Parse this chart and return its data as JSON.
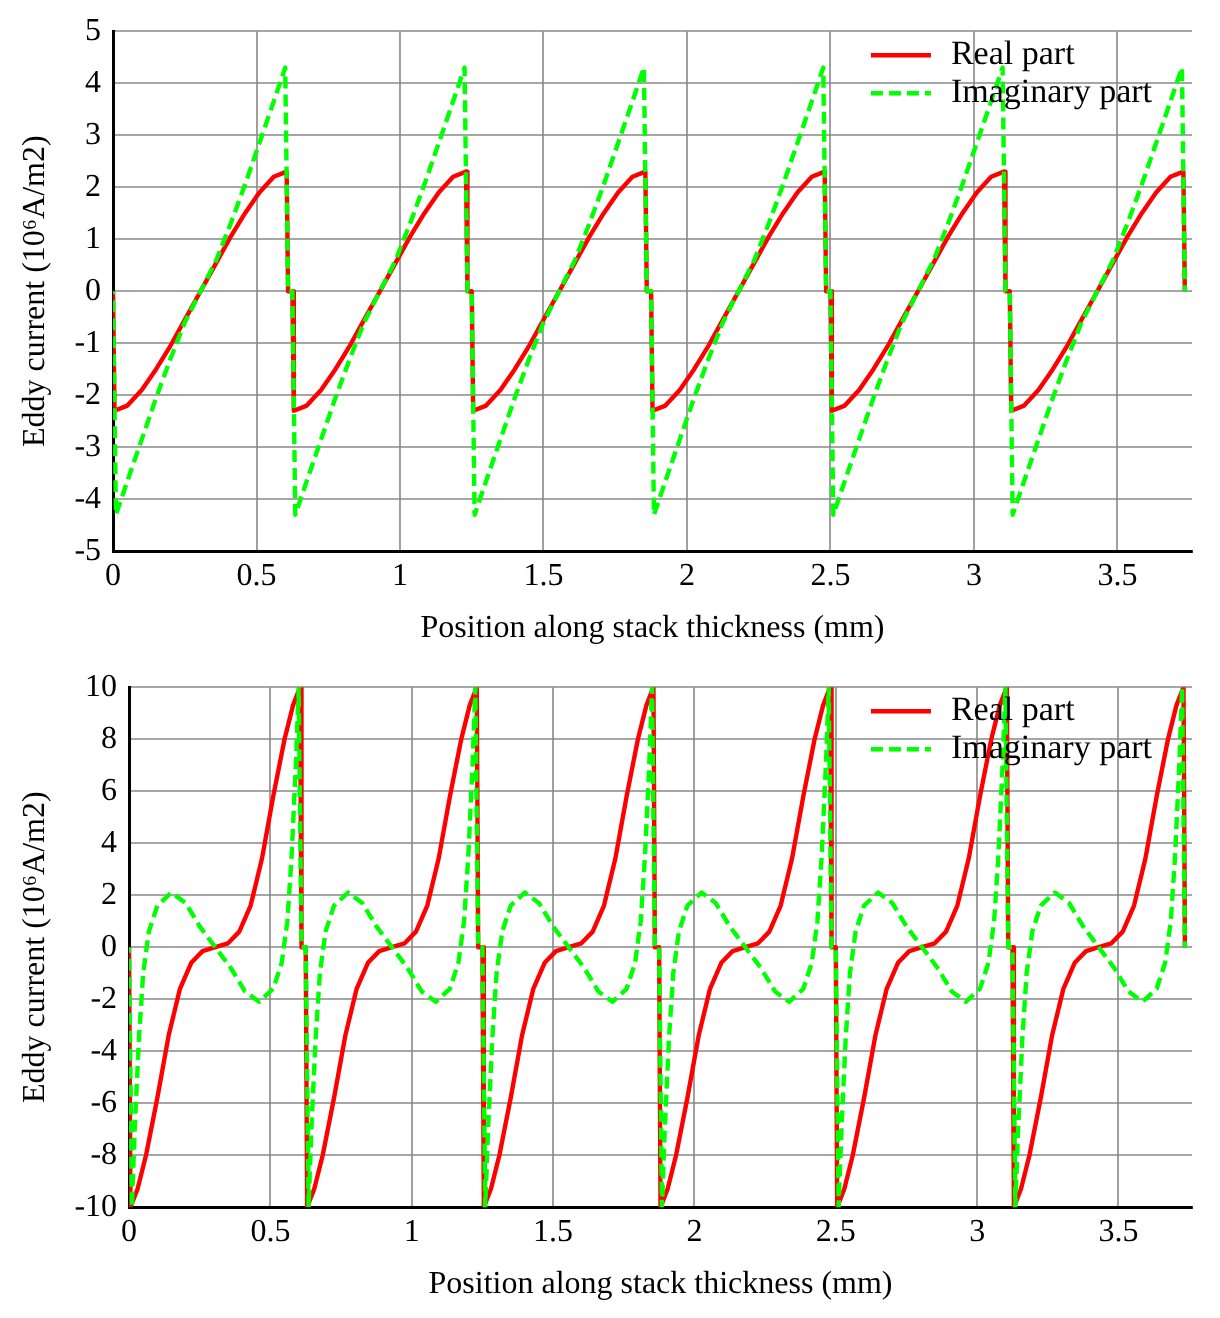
{
  "chart_data": [
    {
      "type": "line",
      "xlabel": "Position along stack thickness (mm)",
      "ylabel": "Eddy current (10⁶A/m2)",
      "xlim": [
        0,
        3.76
      ],
      "xticks": [
        0,
        0.5,
        1,
        1.5,
        2,
        2.5,
        3,
        3.5
      ],
      "ylim": [
        -5,
        5
      ],
      "yticks": [
        -5,
        -4,
        -3,
        -2,
        -1,
        0,
        1,
        2,
        3,
        4,
        5
      ],
      "grid": true,
      "legend": "top right",
      "marker": "none",
      "series": [
        {
          "name": "Real part",
          "color": "#ff0000",
          "line_style": "solid",
          "x": [
            0,
            0.005,
            0.05,
            0.1,
            0.15,
            0.2,
            0.25,
            0.305,
            0.36,
            0.41,
            0.46,
            0.51,
            0.56,
            0.605,
            0.61,
            0.625,
            0.63,
            0.675,
            0.725,
            0.775,
            0.825,
            0.875,
            0.93,
            0.985,
            1.035,
            1.085,
            1.135,
            1.185,
            1.23,
            1.235,
            1.25,
            1.255,
            1.3,
            1.35,
            1.4,
            1.45,
            1.5,
            1.555,
            1.61,
            1.66,
            1.71,
            1.76,
            1.81,
            1.855,
            1.86,
            1.875,
            1.88,
            1.925,
            1.975,
            2.025,
            2.075,
            2.125,
            2.18,
            2.235,
            2.285,
            2.335,
            2.385,
            2.435,
            2.48,
            2.485,
            2.5,
            2.505,
            2.55,
            2.6,
            2.65,
            2.7,
            2.75,
            2.805,
            2.86,
            2.91,
            2.96,
            3.01,
            3.06,
            3.105,
            3.11,
            3.125,
            3.13,
            3.175,
            3.225,
            3.275,
            3.325,
            3.375,
            3.43,
            3.485,
            3.535,
            3.585,
            3.635,
            3.685,
            3.73,
            3.735
          ],
          "values": [
            0,
            -2.3,
            -2.2,
            -1.9,
            -1.5,
            -1.05,
            -0.55,
            0,
            0.55,
            1.05,
            1.5,
            1.9,
            2.2,
            2.3,
            0,
            0,
            -2.3,
            -2.2,
            -1.9,
            -1.5,
            -1.05,
            -0.55,
            0,
            0.55,
            1.05,
            1.5,
            1.9,
            2.2,
            2.3,
            0,
            0,
            -2.3,
            -2.2,
            -1.9,
            -1.5,
            -1.05,
            -0.55,
            0,
            0.55,
            1.05,
            1.5,
            1.9,
            2.2,
            2.3,
            0,
            0,
            -2.3,
            -2.2,
            -1.9,
            -1.5,
            -1.05,
            -0.55,
            0,
            0.55,
            1.05,
            1.5,
            1.9,
            2.2,
            2.3,
            0,
            0,
            -2.3,
            -2.2,
            -1.9,
            -1.5,
            -1.05,
            -0.55,
            0,
            0.55,
            1.05,
            1.5,
            1.9,
            2.2,
            2.3,
            0,
            0,
            -2.3,
            -2.2,
            -1.9,
            -1.5,
            -1.05,
            -0.55,
            0,
            0.55,
            1.05,
            1.5,
            1.9,
            2.2,
            2.3,
            0
          ]
        },
        {
          "name": "Imaginary part",
          "color": "#00ff00",
          "line_style": "dashed",
          "x": [
            0,
            0.01,
            0.05,
            0.1,
            0.15,
            0.2,
            0.25,
            0.305,
            0.36,
            0.41,
            0.46,
            0.51,
            0.56,
            0.6,
            0.61,
            0.625,
            0.635,
            0.675,
            0.725,
            0.775,
            0.825,
            0.875,
            0.93,
            0.985,
            1.035,
            1.085,
            1.135,
            1.185,
            1.225,
            1.235,
            1.25,
            1.26,
            1.3,
            1.35,
            1.4,
            1.45,
            1.5,
            1.555,
            1.61,
            1.66,
            1.71,
            1.76,
            1.81,
            1.85,
            1.86,
            1.875,
            1.885,
            1.925,
            1.975,
            2.025,
            2.075,
            2.125,
            2.18,
            2.235,
            2.285,
            2.335,
            2.385,
            2.435,
            2.475,
            2.485,
            2.5,
            2.51,
            2.55,
            2.6,
            2.65,
            2.7,
            2.75,
            2.805,
            2.86,
            2.91,
            2.96,
            3.01,
            3.06,
            3.1,
            3.11,
            3.125,
            3.135,
            3.175,
            3.225,
            3.275,
            3.325,
            3.375,
            3.43,
            3.485,
            3.535,
            3.585,
            3.635,
            3.685,
            3.725,
            3.735
          ],
          "values": [
            0,
            -4.3,
            -3.65,
            -2.85,
            -2.05,
            -1.3,
            -0.6,
            0,
            0.6,
            1.3,
            2.05,
            2.85,
            3.65,
            4.3,
            0,
            0,
            -4.3,
            -3.65,
            -2.85,
            -2.05,
            -1.3,
            -0.6,
            0,
            0.6,
            1.3,
            2.05,
            2.85,
            3.65,
            4.3,
            0,
            0,
            -4.3,
            -3.65,
            -2.85,
            -2.05,
            -1.3,
            -0.6,
            0,
            0.6,
            1.3,
            2.05,
            2.85,
            3.65,
            4.3,
            0,
            0,
            -4.3,
            -3.65,
            -2.85,
            -2.05,
            -1.3,
            -0.6,
            0,
            0.6,
            1.3,
            2.05,
            2.85,
            3.65,
            4.3,
            0,
            0,
            -4.3,
            -3.65,
            -2.85,
            -2.05,
            -1.3,
            -0.6,
            0,
            0.6,
            1.3,
            2.05,
            2.85,
            3.65,
            4.3,
            0,
            0,
            -4.3,
            -3.65,
            -2.85,
            -2.05,
            -1.3,
            -0.6,
            0,
            0.6,
            1.3,
            2.05,
            2.85,
            3.65,
            4.3,
            0
          ]
        }
      ]
    },
    {
      "type": "line",
      "xlabel": "Position along stack thickness (mm)",
      "ylabel": "Eddy current (10⁶A/m2)",
      "xlim": [
        0,
        3.76
      ],
      "xticks": [
        0,
        0.5,
        1,
        1.5,
        2,
        2.5,
        3,
        3.5
      ],
      "ylim": [
        -10,
        10
      ],
      "yticks": [
        -10,
        -8,
        -6,
        -4,
        -2,
        0,
        2,
        4,
        6,
        8,
        10
      ],
      "grid": true,
      "legend": "top right",
      "marker": "none",
      "series": [
        {
          "name": "Real part",
          "color": "#ff0000",
          "line_style": "solid",
          "x": [
            0,
            0.005,
            0.03,
            0.06,
            0.1,
            0.14,
            0.18,
            0.22,
            0.26,
            0.305,
            0.35,
            0.39,
            0.43,
            0.47,
            0.51,
            0.55,
            0.58,
            0.605,
            0.61,
            0.625,
            0.63,
            0.655,
            0.685,
            0.725,
            0.765,
            0.805,
            0.845,
            0.885,
            0.93,
            0.975,
            1.015,
            1.055,
            1.095,
            1.135,
            1.175,
            1.205,
            1.23,
            1.235,
            1.25,
            1.255,
            1.28,
            1.31,
            1.35,
            1.39,
            1.43,
            1.47,
            1.51,
            1.555,
            1.6,
            1.64,
            1.68,
            1.72,
            1.76,
            1.8,
            1.83,
            1.855,
            1.86,
            1.875,
            1.88,
            1.905,
            1.935,
            1.975,
            2.015,
            2.055,
            2.095,
            2.135,
            2.18,
            2.225,
            2.265,
            2.305,
            2.345,
            2.385,
            2.425,
            2.455,
            2.48,
            2.485,
            2.5,
            2.505,
            2.53,
            2.56,
            2.6,
            2.64,
            2.68,
            2.72,
            2.76,
            2.805,
            2.85,
            2.89,
            2.93,
            2.97,
            3.01,
            3.05,
            3.08,
            3.105,
            3.11,
            3.125,
            3.13,
            3.155,
            3.185,
            3.225,
            3.265,
            3.305,
            3.345,
            3.385,
            3.43,
            3.475,
            3.515,
            3.555,
            3.595,
            3.635,
            3.675,
            3.705,
            3.73,
            3.735
          ],
          "values": [
            0,
            -10,
            -9.3,
            -8,
            -5.8,
            -3.4,
            -1.6,
            -0.6,
            -0.15,
            0,
            0.15,
            0.6,
            1.6,
            3.4,
            5.8,
            8,
            9.3,
            10,
            0,
            0,
            -10,
            -9.3,
            -8,
            -5.8,
            -3.4,
            -1.6,
            -0.6,
            -0.15,
            0,
            0.15,
            0.6,
            1.6,
            3.4,
            5.8,
            8,
            9.3,
            10,
            0,
            0,
            -10,
            -9.3,
            -8,
            -5.8,
            -3.4,
            -1.6,
            -0.6,
            -0.15,
            0,
            0.15,
            0.6,
            1.6,
            3.4,
            5.8,
            8,
            9.3,
            10,
            0,
            0,
            -10,
            -9.3,
            -8,
            -5.8,
            -3.4,
            -1.6,
            -0.6,
            -0.15,
            0,
            0.15,
            0.6,
            1.6,
            3.4,
            5.8,
            8,
            9.3,
            10,
            0,
            0,
            -10,
            -9.3,
            -8,
            -5.8,
            -3.4,
            -1.6,
            -0.6,
            -0.15,
            0,
            0.15,
            0.6,
            1.6,
            3.4,
            5.8,
            8,
            9.3,
            10,
            0,
            0,
            -10,
            -9.3,
            -8,
            -5.8,
            -3.4,
            -1.6,
            -0.6,
            -0.15,
            0,
            0.15,
            0.6,
            1.6,
            3.4,
            5.8,
            8,
            9.3,
            10,
            0
          ]
        },
        {
          "name": "Imaginary part",
          "color": "#00ff00",
          "line_style": "dashed",
          "x": [
            0,
            0.01,
            0.02,
            0.035,
            0.05,
            0.07,
            0.1,
            0.15,
            0.2,
            0.25,
            0.305,
            0.36,
            0.41,
            0.46,
            0.51,
            0.54,
            0.56,
            0.575,
            0.59,
            0.6,
            0.61,
            0.625,
            0.635,
            0.645,
            0.66,
            0.675,
            0.695,
            0.725,
            0.775,
            0.825,
            0.875,
            0.93,
            0.985,
            1.035,
            1.085,
            1.135,
            1.165,
            1.185,
            1.2,
            1.215,
            1.225,
            1.235,
            1.25,
            1.26,
            1.27,
            1.285,
            1.3,
            1.32,
            1.35,
            1.4,
            1.45,
            1.5,
            1.555,
            1.61,
            1.66,
            1.71,
            1.76,
            1.79,
            1.81,
            1.825,
            1.84,
            1.85,
            1.86,
            1.875,
            1.885,
            1.895,
            1.91,
            1.925,
            1.945,
            1.975,
            2.025,
            2.075,
            2.125,
            2.18,
            2.235,
            2.285,
            2.335,
            2.385,
            2.415,
            2.435,
            2.45,
            2.465,
            2.475,
            2.485,
            2.5,
            2.51,
            2.52,
            2.535,
            2.55,
            2.57,
            2.6,
            2.65,
            2.7,
            2.75,
            2.805,
            2.86,
            2.91,
            2.96,
            3.01,
            3.04,
            3.06,
            3.075,
            3.09,
            3.1,
            3.11,
            3.125,
            3.135,
            3.145,
            3.16,
            3.175,
            3.195,
            3.225,
            3.275,
            3.325,
            3.375,
            3.43,
            3.485,
            3.535,
            3.585,
            3.635,
            3.665,
            3.685,
            3.7,
            3.715,
            3.725,
            3.735
          ],
          "values": [
            0,
            -10,
            -7,
            -3.5,
            -1,
            0.6,
            1.6,
            2.1,
            1.7,
            0.8,
            0,
            -0.8,
            -1.7,
            -2.1,
            -1.6,
            -0.6,
            1,
            3.5,
            7,
            10,
            0,
            0,
            -10,
            -7,
            -3.5,
            -1,
            0.6,
            1.6,
            2.1,
            1.7,
            0.8,
            0,
            -0.8,
            -1.7,
            -2.1,
            -1.6,
            -0.6,
            1,
            3.5,
            7,
            10,
            0,
            0,
            -10,
            -7,
            -3.5,
            -1,
            0.6,
            1.6,
            2.1,
            1.7,
            0.8,
            0,
            -0.8,
            -1.7,
            -2.1,
            -1.6,
            -0.6,
            1,
            3.5,
            7,
            10,
            0,
            0,
            -10,
            -7,
            -3.5,
            -1,
            0.6,
            1.6,
            2.1,
            1.7,
            0.8,
            0,
            -0.8,
            -1.7,
            -2.1,
            -1.6,
            -0.6,
            1,
            3.5,
            7,
            10,
            0,
            0,
            -10,
            -7,
            -3.5,
            -1,
            0.6,
            1.6,
            2.1,
            1.7,
            0.8,
            0,
            -0.8,
            -1.7,
            -2.1,
            -1.6,
            -0.6,
            1,
            3.5,
            7,
            10,
            0,
            0,
            -10,
            -7,
            -3.5,
            -1,
            0.6,
            1.6,
            2.1,
            1.7,
            0.8,
            0,
            -0.8,
            -1.7,
            -2.1,
            -1.6,
            -0.6,
            1,
            3.5,
            7,
            10,
            0
          ]
        }
      ]
    }
  ]
}
